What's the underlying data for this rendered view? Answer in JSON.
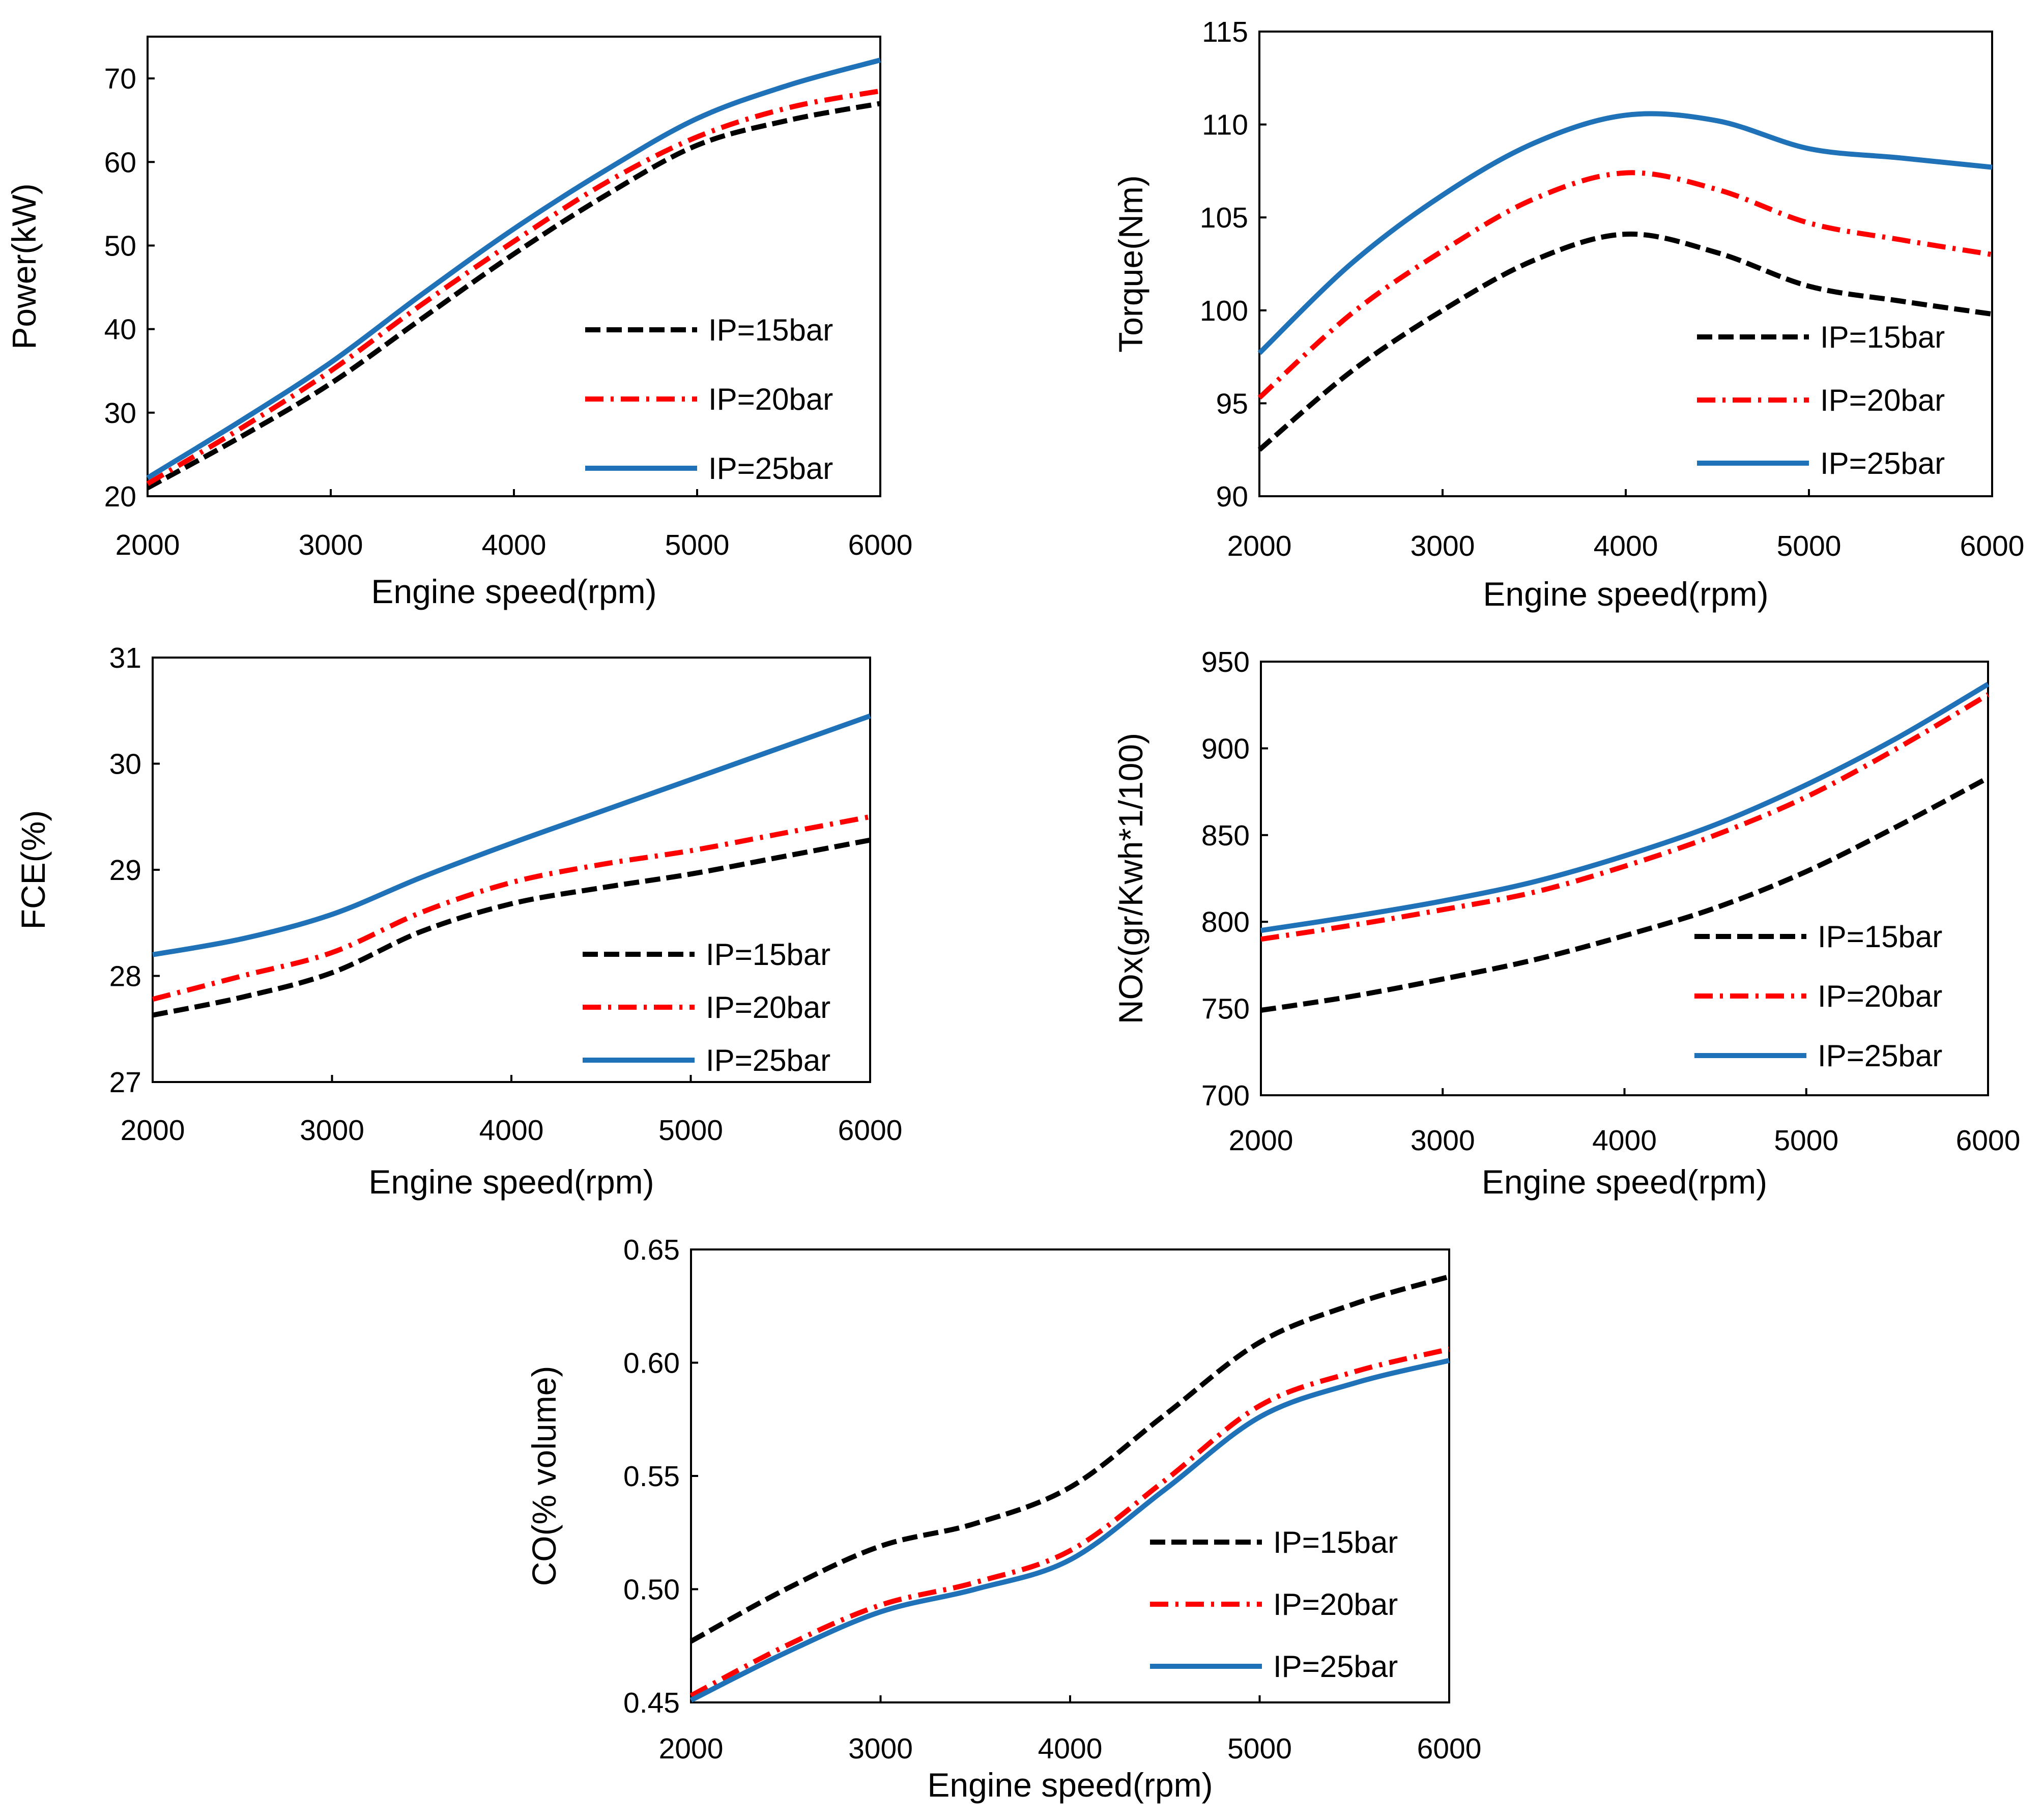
{
  "figure": {
    "series_styles": [
      {
        "name": "IP=15bar",
        "color": "#000000",
        "dash": "dashed"
      },
      {
        "name": "IP=20bar",
        "color": "#ff0000",
        "dash": "dashdot"
      },
      {
        "name": "IP=25bar",
        "color": "#1f72b8",
        "dash": "solid"
      }
    ]
  },
  "chart_data": [
    {
      "id": "power",
      "type": "line",
      "title": "",
      "xlabel": "Engine speed(rpm)",
      "ylabel": "Power(kW)",
      "xlim": [
        2000,
        6000
      ],
      "ylim": [
        20,
        75
      ],
      "xticks": [
        2000,
        3000,
        4000,
        5000,
        6000
      ],
      "yticks": [
        20,
        30,
        40,
        50,
        60,
        70
      ],
      "grid": false,
      "legend": "lower right",
      "x": [
        2000,
        2500,
        3000,
        3500,
        4000,
        4500,
        5000,
        5500,
        6000
      ],
      "series": [
        {
          "name": "IP=15bar",
          "values": [
            21,
            27,
            33.5,
            41.3,
            49,
            56,
            62,
            65,
            67
          ]
        },
        {
          "name": "IP=20bar",
          "values": [
            21.5,
            28,
            35,
            43,
            50.5,
            57.5,
            63,
            66.5,
            68.5
          ]
        },
        {
          "name": "IP=25bar",
          "values": [
            22.2,
            28.9,
            36,
            44.2,
            52,
            59,
            65.2,
            69.2,
            72.2
          ]
        }
      ]
    },
    {
      "id": "torque",
      "type": "line",
      "title": "",
      "xlabel": "Engine speed(rpm)",
      "ylabel": "Torque(Nm)",
      "xlim": [
        2000,
        6000
      ],
      "ylim": [
        90,
        115
      ],
      "xticks": [
        2000,
        3000,
        4000,
        5000,
        6000
      ],
      "yticks": [
        90,
        95,
        100,
        105,
        110,
        115
      ],
      "grid": false,
      "legend": "lower right",
      "x": [
        2000,
        2500,
        3000,
        3500,
        4000,
        4500,
        5000,
        5500,
        6000
      ],
      "series": [
        {
          "name": "IP=15bar",
          "values": [
            92.5,
            96.7,
            100,
            102.7,
            104.1,
            103.1,
            101.3,
            100.5,
            99.8
          ]
        },
        {
          "name": "IP=20bar",
          "values": [
            95.3,
            99.8,
            103.2,
            106,
            107.4,
            106.5,
            104.7,
            103.8,
            103
          ]
        },
        {
          "name": "IP=25bar",
          "values": [
            97.7,
            102.5,
            106.2,
            109,
            110.5,
            110.2,
            108.7,
            108.2,
            107.7
          ]
        }
      ]
    },
    {
      "id": "fce",
      "type": "line",
      "title": "",
      "xlabel": "Engine speed(rpm)",
      "ylabel": "FCE(%)",
      "xlim": [
        2000,
        6000
      ],
      "ylim": [
        27,
        31
      ],
      "xticks": [
        2000,
        3000,
        4000,
        5000,
        6000
      ],
      "yticks": [
        27,
        28,
        29,
        30,
        31
      ],
      "grid": false,
      "legend": "lower right",
      "x": [
        2000,
        2500,
        3000,
        3500,
        4000,
        4500,
        5000,
        5500,
        6000
      ],
      "series": [
        {
          "name": "IP=15bar",
          "values": [
            27.63,
            27.8,
            28.03,
            28.42,
            28.68,
            28.83,
            28.96,
            29.12,
            29.28
          ]
        },
        {
          "name": "IP=20bar",
          "values": [
            27.78,
            28,
            28.22,
            28.6,
            28.88,
            29.05,
            29.18,
            29.34,
            29.5
          ]
        },
        {
          "name": "IP=25bar",
          "values": [
            28.2,
            28.35,
            28.58,
            28.93,
            29.25,
            29.55,
            29.85,
            30.15,
            30.45
          ]
        }
      ]
    },
    {
      "id": "nox",
      "type": "line",
      "title": "",
      "xlabel": "Engine speed(rpm)",
      "ylabel": "NOx(gr/Kwh*1/100)",
      "xlim": [
        2000,
        6000
      ],
      "ylim": [
        700,
        950
      ],
      "xticks": [
        2000,
        3000,
        4000,
        5000,
        6000
      ],
      "yticks": [
        700,
        750,
        800,
        850,
        900,
        950
      ],
      "grid": false,
      "legend": "lower right",
      "x": [
        2000,
        2500,
        3000,
        3500,
        4000,
        4500,
        5000,
        5500,
        6000
      ],
      "series": [
        {
          "name": "IP=15bar",
          "values": [
            749,
            757,
            767,
            778,
            792,
            808,
            829,
            855,
            883
          ]
        },
        {
          "name": "IP=20bar",
          "values": [
            790,
            798,
            807,
            817,
            832,
            850,
            872,
            900,
            931
          ]
        },
        {
          "name": "IP=25bar",
          "values": [
            795,
            803,
            812,
            823,
            838,
            856,
            879,
            906,
            937
          ]
        }
      ]
    },
    {
      "id": "co",
      "type": "line",
      "title": "",
      "xlabel": "Engine speed(rpm)",
      "ylabel": "CO(% volume)",
      "xlim": [
        2000,
        6000
      ],
      "ylim": [
        0.45,
        0.65
      ],
      "xticks": [
        2000,
        3000,
        4000,
        5000,
        6000
      ],
      "yticks": [
        0.45,
        0.5,
        0.55,
        0.6,
        0.65
      ],
      "grid": false,
      "legend": "lower right",
      "x": [
        2000,
        2500,
        3000,
        3500,
        4000,
        4500,
        5000,
        5500,
        6000
      ],
      "series": [
        {
          "name": "IP=15bar",
          "values": [
            0.477,
            0.5,
            0.519,
            0.529,
            0.545,
            0.577,
            0.609,
            0.626,
            0.638
          ]
        },
        {
          "name": "IP=20bar",
          "values": [
            0.453,
            0.475,
            0.493,
            0.503,
            0.517,
            0.548,
            0.581,
            0.596,
            0.606
          ]
        },
        {
          "name": "IP=25bar",
          "values": [
            0.451,
            0.472,
            0.49,
            0.5,
            0.513,
            0.544,
            0.576,
            0.591,
            0.601
          ]
        }
      ]
    }
  ]
}
